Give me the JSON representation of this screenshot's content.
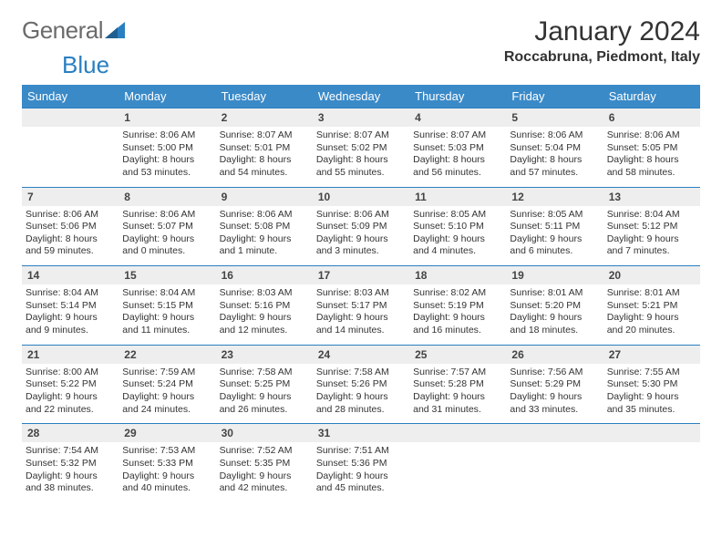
{
  "logo": {
    "part1": "General",
    "part2": "Blue"
  },
  "title": "January 2024",
  "location": "Roccabruna, Piedmont, Italy",
  "colors": {
    "header_bg": "#3a8ac8",
    "border": "#2a7fc0",
    "daynum_bg": "#eeeeee",
    "logo_grey": "#6b6b6b",
    "logo_blue": "#2a7fc0"
  },
  "weekdays": [
    "Sunday",
    "Monday",
    "Tuesday",
    "Wednesday",
    "Thursday",
    "Friday",
    "Saturday"
  ],
  "weeks": [
    [
      {
        "num": "",
        "sunrise": "",
        "sunset": "",
        "daylight": ""
      },
      {
        "num": "1",
        "sunrise": "8:06 AM",
        "sunset": "5:00 PM",
        "daylight": "8 hours and 53 minutes."
      },
      {
        "num": "2",
        "sunrise": "8:07 AM",
        "sunset": "5:01 PM",
        "daylight": "8 hours and 54 minutes."
      },
      {
        "num": "3",
        "sunrise": "8:07 AM",
        "sunset": "5:02 PM",
        "daylight": "8 hours and 55 minutes."
      },
      {
        "num": "4",
        "sunrise": "8:07 AM",
        "sunset": "5:03 PM",
        "daylight": "8 hours and 56 minutes."
      },
      {
        "num": "5",
        "sunrise": "8:06 AM",
        "sunset": "5:04 PM",
        "daylight": "8 hours and 57 minutes."
      },
      {
        "num": "6",
        "sunrise": "8:06 AM",
        "sunset": "5:05 PM",
        "daylight": "8 hours and 58 minutes."
      }
    ],
    [
      {
        "num": "7",
        "sunrise": "8:06 AM",
        "sunset": "5:06 PM",
        "daylight": "8 hours and 59 minutes."
      },
      {
        "num": "8",
        "sunrise": "8:06 AM",
        "sunset": "5:07 PM",
        "daylight": "9 hours and 0 minutes."
      },
      {
        "num": "9",
        "sunrise": "8:06 AM",
        "sunset": "5:08 PM",
        "daylight": "9 hours and 1 minute."
      },
      {
        "num": "10",
        "sunrise": "8:06 AM",
        "sunset": "5:09 PM",
        "daylight": "9 hours and 3 minutes."
      },
      {
        "num": "11",
        "sunrise": "8:05 AM",
        "sunset": "5:10 PM",
        "daylight": "9 hours and 4 minutes."
      },
      {
        "num": "12",
        "sunrise": "8:05 AM",
        "sunset": "5:11 PM",
        "daylight": "9 hours and 6 minutes."
      },
      {
        "num": "13",
        "sunrise": "8:04 AM",
        "sunset": "5:12 PM",
        "daylight": "9 hours and 7 minutes."
      }
    ],
    [
      {
        "num": "14",
        "sunrise": "8:04 AM",
        "sunset": "5:14 PM",
        "daylight": "9 hours and 9 minutes."
      },
      {
        "num": "15",
        "sunrise": "8:04 AM",
        "sunset": "5:15 PM",
        "daylight": "9 hours and 11 minutes."
      },
      {
        "num": "16",
        "sunrise": "8:03 AM",
        "sunset": "5:16 PM",
        "daylight": "9 hours and 12 minutes."
      },
      {
        "num": "17",
        "sunrise": "8:03 AM",
        "sunset": "5:17 PM",
        "daylight": "9 hours and 14 minutes."
      },
      {
        "num": "18",
        "sunrise": "8:02 AM",
        "sunset": "5:19 PM",
        "daylight": "9 hours and 16 minutes."
      },
      {
        "num": "19",
        "sunrise": "8:01 AM",
        "sunset": "5:20 PM",
        "daylight": "9 hours and 18 minutes."
      },
      {
        "num": "20",
        "sunrise": "8:01 AM",
        "sunset": "5:21 PM",
        "daylight": "9 hours and 20 minutes."
      }
    ],
    [
      {
        "num": "21",
        "sunrise": "8:00 AM",
        "sunset": "5:22 PM",
        "daylight": "9 hours and 22 minutes."
      },
      {
        "num": "22",
        "sunrise": "7:59 AM",
        "sunset": "5:24 PM",
        "daylight": "9 hours and 24 minutes."
      },
      {
        "num": "23",
        "sunrise": "7:58 AM",
        "sunset": "5:25 PM",
        "daylight": "9 hours and 26 minutes."
      },
      {
        "num": "24",
        "sunrise": "7:58 AM",
        "sunset": "5:26 PM",
        "daylight": "9 hours and 28 minutes."
      },
      {
        "num": "25",
        "sunrise": "7:57 AM",
        "sunset": "5:28 PM",
        "daylight": "9 hours and 31 minutes."
      },
      {
        "num": "26",
        "sunrise": "7:56 AM",
        "sunset": "5:29 PM",
        "daylight": "9 hours and 33 minutes."
      },
      {
        "num": "27",
        "sunrise": "7:55 AM",
        "sunset": "5:30 PM",
        "daylight": "9 hours and 35 minutes."
      }
    ],
    [
      {
        "num": "28",
        "sunrise": "7:54 AM",
        "sunset": "5:32 PM",
        "daylight": "9 hours and 38 minutes."
      },
      {
        "num": "29",
        "sunrise": "7:53 AM",
        "sunset": "5:33 PM",
        "daylight": "9 hours and 40 minutes."
      },
      {
        "num": "30",
        "sunrise": "7:52 AM",
        "sunset": "5:35 PM",
        "daylight": "9 hours and 42 minutes."
      },
      {
        "num": "31",
        "sunrise": "7:51 AM",
        "sunset": "5:36 PM",
        "daylight": "9 hours and 45 minutes."
      },
      {
        "num": "",
        "sunrise": "",
        "sunset": "",
        "daylight": ""
      },
      {
        "num": "",
        "sunrise": "",
        "sunset": "",
        "daylight": ""
      },
      {
        "num": "",
        "sunrise": "",
        "sunset": "",
        "daylight": ""
      }
    ]
  ],
  "labels": {
    "sunrise": "Sunrise:",
    "sunset": "Sunset:",
    "daylight": "Daylight:"
  }
}
